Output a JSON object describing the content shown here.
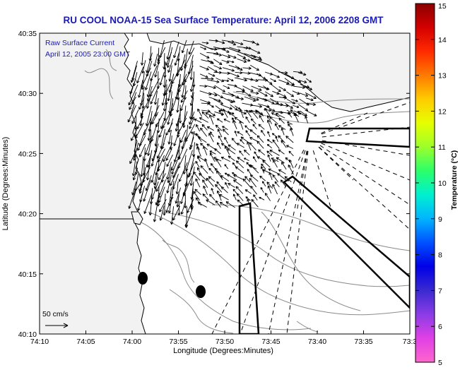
{
  "title": "RU COOL  NOAA-15  Sea Surface Temperature:  April 12, 2006 2208 GMT",
  "annotation": {
    "line1": "Raw Surface Current",
    "line2": "April 12, 2005 23:00 GMT"
  },
  "scale_label": "50 cm/s",
  "x_axis": {
    "label": "Longitude (Degrees:Minutes)",
    "ticks": [
      "74:10",
      "74:05",
      "74:00",
      "73:55",
      "73:50",
      "73:45",
      "73:40",
      "73:35",
      "73:3"
    ]
  },
  "y_axis": {
    "label": "Latitude (Degrees:Minutes)",
    "ticks": [
      "40:35",
      "40:30",
      "40:25",
      "40:20",
      "40:15",
      "40:10"
    ]
  },
  "colorbar": {
    "label": "Temperature (°C)",
    "ticks": [
      "15",
      "14",
      "13",
      "12",
      "11",
      "10",
      "9",
      "8",
      "7",
      "6",
      "5"
    ],
    "stops": [
      "#8b0000",
      "#d40000",
      "#ff2a00",
      "#ff7a00",
      "#ffcc00",
      "#e6ff00",
      "#9cff2a",
      "#2aff6a",
      "#00f0d0",
      "#00b4ff",
      "#0050ff",
      "#0000e6",
      "#3a2ad0",
      "#8c3ce6",
      "#e040e6",
      "#ff66cc"
    ]
  },
  "colors": {
    "title": "#1a1ab4",
    "land": "#f2f2f2",
    "contour": "#8a8a8a",
    "vector": "#000000"
  }
}
